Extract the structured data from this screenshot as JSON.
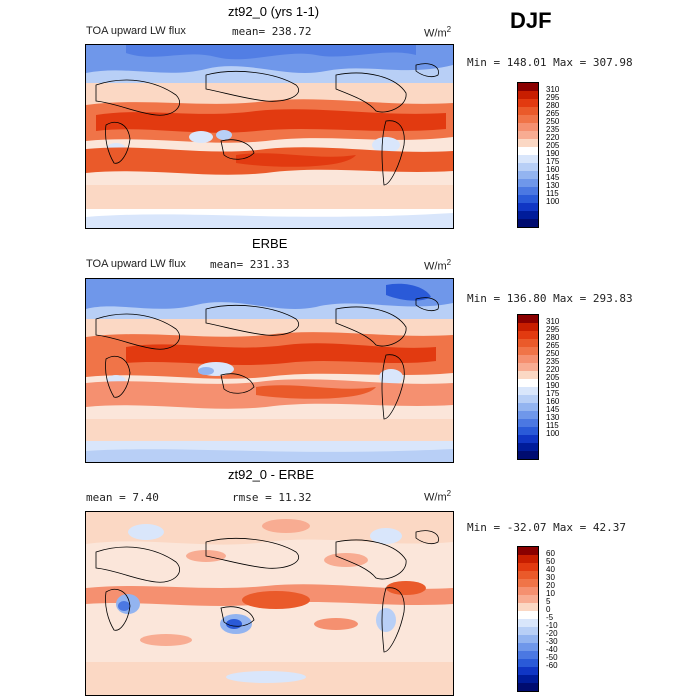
{
  "season": "DJF",
  "panels": [
    {
      "title": "zt92_0 (yrs 1-1)",
      "field": "TOA upward LW flux",
      "mean_text": "mean= 238.72",
      "rmse_text": "",
      "units_base": "W/m",
      "units_exp": "2",
      "min_max_text": "Min = 148.01 Max = 307.98",
      "colorbar": {
        "colors": [
          "#8a0000",
          "#c81e00",
          "#e23a10",
          "#ea5a2a",
          "#f07448",
          "#f59070",
          "#f8ac92",
          "#fbd8c4",
          "#ffffff",
          "#d9e6fb",
          "#b8cff6",
          "#93b4f0",
          "#6f97ea",
          "#4b78e2",
          "#2a5ad8",
          "#1036c4",
          "#001c9a",
          "#000c70"
        ],
        "ticks": [
          "310",
          "295",
          "280",
          "265",
          "250",
          "235",
          "220",
          "205",
          "190",
          "175",
          "160",
          "145",
          "130",
          "115",
          "100"
        ]
      }
    },
    {
      "title": "ERBE",
      "field": "TOA upward LW flux",
      "mean_text": "mean= 231.33",
      "rmse_text": "",
      "units_base": "W/m",
      "units_exp": "2",
      "min_max_text": "Min = 136.80 Max = 293.83",
      "colorbar": {
        "colors": [
          "#8a0000",
          "#c81e00",
          "#e23a10",
          "#ea5a2a",
          "#f07448",
          "#f59070",
          "#f8ac92",
          "#fbd8c4",
          "#ffffff",
          "#d9e6fb",
          "#b8cff6",
          "#93b4f0",
          "#6f97ea",
          "#4b78e2",
          "#2a5ad8",
          "#1036c4",
          "#001c9a",
          "#000c70"
        ],
        "ticks": [
          "310",
          "295",
          "280",
          "265",
          "250",
          "235",
          "220",
          "205",
          "190",
          "175",
          "160",
          "145",
          "130",
          "115",
          "100"
        ]
      }
    },
    {
      "title": "zt92_0 - ERBE",
      "field": "",
      "mean_text": "mean =   7.40",
      "rmse_text": "rmse =  11.32",
      "units_base": "W/m",
      "units_exp": "2",
      "min_max_text": "Min = -32.07 Max =  42.37",
      "colorbar": {
        "colors": [
          "#8a0000",
          "#c81e00",
          "#e23a10",
          "#ea5a2a",
          "#f07448",
          "#f59070",
          "#f8ac92",
          "#fbd8c4",
          "#ffffff",
          "#d9e6fb",
          "#b8cff6",
          "#93b4f0",
          "#6f97ea",
          "#4b78e2",
          "#2a5ad8",
          "#1036c4",
          "#001c9a",
          "#000c70"
        ],
        "ticks": [
          "60",
          "50",
          "40",
          "30",
          "20",
          "10",
          "5",
          "0",
          "-5",
          "-10",
          "-20",
          "-30",
          "-40",
          "-50",
          "-60"
        ]
      }
    }
  ]
}
